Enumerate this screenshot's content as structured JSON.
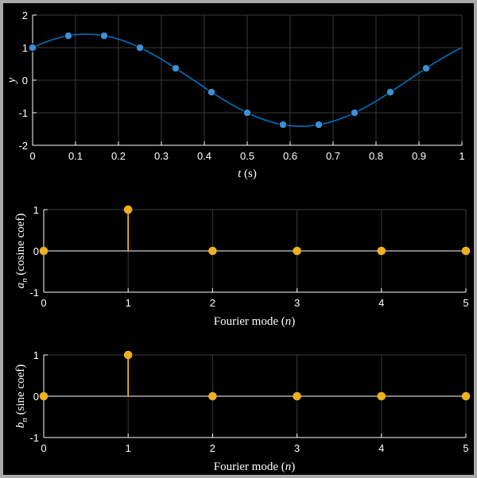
{
  "colors": {
    "background": "#000000",
    "frame": "#a9a9a9",
    "grid": "#3a3a3a",
    "axis": "#ffffff",
    "signal": "#0072bd",
    "samples": "#3d8fd4",
    "stems": "#edb120"
  },
  "chart_data": [
    {
      "type": "line",
      "xlabel_var": "t",
      "xlabel_unit": "(s)",
      "ylabel": "y",
      "xlim": [
        0,
        1
      ],
      "ylim": [
        -2,
        2
      ],
      "xticks": [
        "0",
        "0.1",
        "0.2",
        "0.3",
        "0.4",
        "0.5",
        "0.6",
        "0.7",
        "0.8",
        "0.9",
        "1"
      ],
      "yticks": [
        "-2",
        "-1",
        "0",
        "1",
        "2"
      ],
      "grid": true,
      "curve": "cos(2πt) + sin(2πt)",
      "x": [
        0,
        0.0833,
        0.1667,
        0.25,
        0.3333,
        0.4167,
        0.5,
        0.5833,
        0.6667,
        0.75,
        0.8333,
        0.9167
      ],
      "values": [
        1,
        1.366,
        1.366,
        1,
        0.366,
        -0.366,
        -1,
        -1.366,
        -1.366,
        -1,
        -0.366,
        0.366
      ]
    },
    {
      "type": "stem",
      "xlabel_text": "Fourier mode",
      "xlabel_var": "n",
      "ylabel_var": "a",
      "ylabel_sub": "n",
      "ylabel_text": "(cosine coef)",
      "xlim": [
        0,
        5
      ],
      "ylim": [
        -1,
        1
      ],
      "xticks": [
        "0",
        "1",
        "2",
        "3",
        "4",
        "5"
      ],
      "yticks": [
        "-1",
        "0",
        "1"
      ],
      "grid": true,
      "x": [
        0,
        1,
        2,
        3,
        4,
        5
      ],
      "values": [
        0,
        1,
        0,
        0,
        0,
        0
      ]
    },
    {
      "type": "stem",
      "xlabel_text": "Fourier mode",
      "xlabel_var": "n",
      "ylabel_var": "b",
      "ylabel_sub": "n",
      "ylabel_text": "(sine coef)",
      "xlim": [
        0,
        5
      ],
      "ylim": [
        -1,
        1
      ],
      "xticks": [
        "0",
        "1",
        "2",
        "3",
        "4",
        "5"
      ],
      "yticks": [
        "-1",
        "0",
        "1"
      ],
      "grid": true,
      "x": [
        0,
        1,
        2,
        3,
        4,
        5
      ],
      "values": [
        0,
        1,
        0,
        0,
        0,
        0
      ]
    }
  ]
}
